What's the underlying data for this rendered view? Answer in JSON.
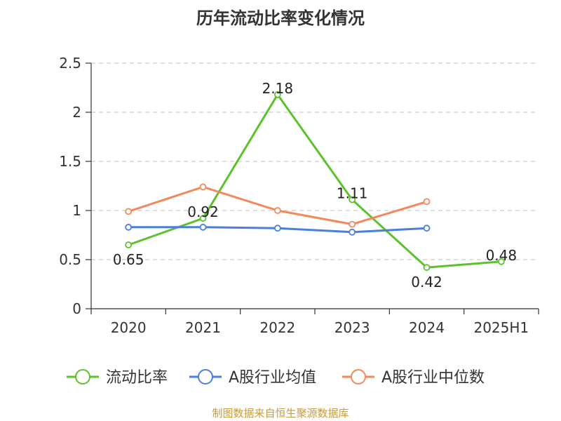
{
  "title": "历年流动比率变化情况",
  "source": "制图数据来自恒生聚源数据库",
  "colors": {
    "current_ratio": "#5cc22b",
    "industry_mean": "#4a7fdb",
    "industry_median": "#f5885a",
    "grid": "#cccccc",
    "axis": "#333333"
  },
  "chart_data": {
    "type": "line",
    "title": "历年流动比率变化情况",
    "categories": [
      "2020",
      "2021",
      "2022",
      "2023",
      "2024",
      "2025H1"
    ],
    "ylim": [
      0,
      2.5
    ],
    "yticks": [
      0,
      0.5,
      1,
      1.5,
      2,
      2.5
    ],
    "ytick_labels": [
      "0",
      "0.5",
      "1",
      "1.5",
      "2",
      "2.5"
    ],
    "grid": "horizontal dashed",
    "legend_position": "bottom",
    "series": [
      {
        "name": "流动比率",
        "values": [
          0.65,
          0.92,
          2.18,
          1.11,
          0.42,
          0.48
        ],
        "labels": [
          "0.65",
          "0.92",
          "2.18",
          "1.11",
          "0.42",
          "0.48"
        ]
      },
      {
        "name": "A股行业均值",
        "values": [
          0.83,
          0.83,
          0.82,
          0.78,
          0.82,
          null
        ]
      },
      {
        "name": "A股行业中位数",
        "values": [
          0.99,
          1.24,
          1.0,
          0.86,
          1.09,
          null
        ]
      }
    ]
  }
}
